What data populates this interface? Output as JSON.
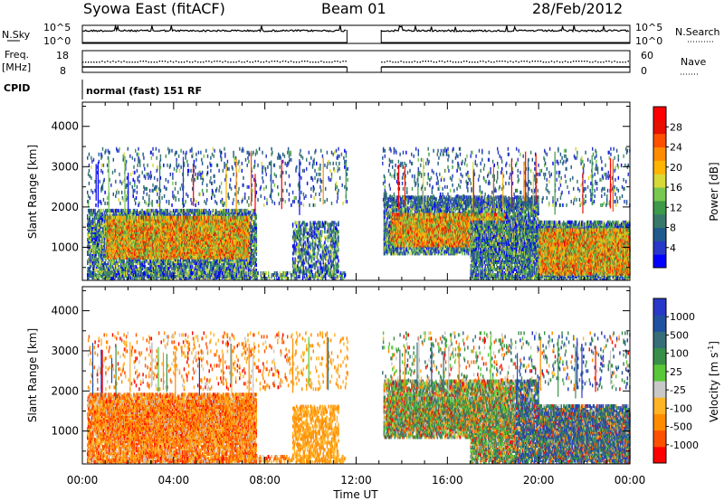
{
  "header": {
    "radar_title": "Syowa East (fitACF)",
    "beam": "Beam 01",
    "date": "28/Feb/2012"
  },
  "top_panels": {
    "nsky_label": "N.Sky",
    "nsky_ticks": [
      "10^5",
      "10^0"
    ],
    "nsearch_label": "N.Search",
    "freq_label_line1": "Freq.",
    "freq_label_line2": "[MHz]",
    "freq_ticks": [
      "18",
      "8"
    ],
    "nave_label": "Nave",
    "nave_ticks": [
      "60",
      "0"
    ],
    "cpid_label": "CPID",
    "cpid_text": "normal (fast) 151 RF"
  },
  "chart_data": [
    {
      "type": "heatmap",
      "name": "power",
      "xlabel": "",
      "ylabel": "Slant Range [km]",
      "x_ticks": [
        "00:00",
        "04:00",
        "08:00",
        "12:00",
        "16:00",
        "20:00",
        "00:00"
      ],
      "xlim_hours": [
        0,
        24
      ],
      "y_ticks": [
        "1000",
        "2000",
        "3000",
        "4000"
      ],
      "ylim_km": [
        180,
        4600
      ],
      "data_gap_hours": [
        11.6,
        13.1
      ],
      "colorbar": {
        "label": "Power [dB]",
        "ticks": [
          "28",
          "24",
          "20",
          "16",
          "12",
          "8",
          "4"
        ],
        "colors": [
          "#0000ff",
          "#2838c8",
          "#205a8c",
          "#38786a",
          "#3c9a48",
          "#78c850",
          "#d8d838",
          "#ffb400",
          "#ff8c00",
          "#ff5000",
          "#e81000",
          "#ff0000"
        ]
      }
    },
    {
      "type": "heatmap",
      "name": "velocity",
      "xlabel": "Time UT",
      "ylabel": "Slant Range [km]",
      "x_ticks": [
        "00:00",
        "04:00",
        "08:00",
        "12:00",
        "16:00",
        "20:00",
        "00:00"
      ],
      "xlim_hours": [
        0,
        24
      ],
      "y_ticks": [
        "1000",
        "2000",
        "3000",
        "4000"
      ],
      "ylim_km": [
        180,
        4600
      ],
      "data_gap_hours": [
        11.6,
        13.1
      ],
      "colorbar": {
        "label": "Velocity [m s",
        "label_sup": "-1",
        "label_end": "]",
        "ticks": [
          "1000",
          "500",
          "100",
          "25",
          "-25",
          "-100",
          "-500",
          "-1000"
        ],
        "colors": [
          "#ff0000",
          "#ff5000",
          "#ff8c00",
          "#ffb428",
          "#c8c8c8",
          "#58c838",
          "#389048",
          "#386e78",
          "#2050a0",
          "#2838c8"
        ]
      }
    }
  ]
}
